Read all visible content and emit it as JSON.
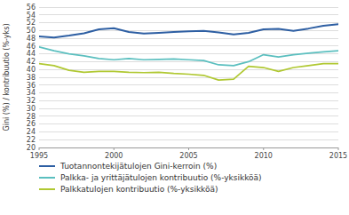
{
  "chart_data": {
    "type": "line",
    "x": [
      1995,
      1996,
      1997,
      1998,
      1999,
      2000,
      2001,
      2002,
      2003,
      2004,
      2005,
      2006,
      2007,
      2008,
      2009,
      2010,
      2011,
      2012,
      2013,
      2014,
      2015
    ],
    "series": [
      {
        "name": "Tuotannontekijätulojen Gini-kerroin (%)",
        "color": "#2e5fa3",
        "values": [
          48.5,
          48.2,
          48.7,
          49.3,
          50.3,
          50.6,
          49.6,
          49.2,
          49.4,
          49.6,
          49.8,
          49.9,
          49.5,
          49.0,
          49.4,
          50.3,
          50.4,
          49.9,
          50.5,
          51.2,
          51.6
        ]
      },
      {
        "name": "Palkka- ja yrittäjätulojen kontribuutio (%-yksikköä)",
        "color": "#5bbfbf",
        "values": [
          45.8,
          44.8,
          44.0,
          43.5,
          42.8,
          42.5,
          42.8,
          42.5,
          42.6,
          42.7,
          42.5,
          42.3,
          41.2,
          41.0,
          42.0,
          43.8,
          43.2,
          43.8,
          44.2,
          44.5,
          44.8
        ]
      },
      {
        "name": "Palkkatulojen kontribuutio (%-yksikköä)",
        "color": "#b0c832",
        "values": [
          41.5,
          41.0,
          39.8,
          39.3,
          39.5,
          39.5,
          39.3,
          39.2,
          39.3,
          39.0,
          38.8,
          38.5,
          37.3,
          37.5,
          40.8,
          40.5,
          39.5,
          40.5,
          41.0,
          41.5,
          41.5
        ]
      }
    ],
    "ylabel": "Gini (%) / kontribuutio (%-yks)",
    "xlim": [
      1995,
      2015
    ],
    "xticks": [
      1995,
      2000,
      2005,
      2010,
      2015
    ],
    "ylim": [
      20,
      56
    ],
    "yticks": [
      20,
      22,
      24,
      26,
      28,
      30,
      32,
      34,
      36,
      38,
      40,
      42,
      44,
      46,
      48,
      50,
      52,
      54,
      56
    ],
    "grid": true,
    "legend": "lower left"
  }
}
